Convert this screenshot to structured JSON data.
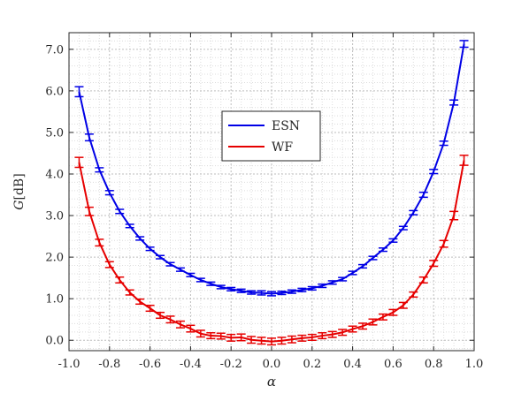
{
  "chart_data": {
    "type": "line",
    "xlabel": "α",
    "ylabel_italic": "G",
    "ylabel_rest": "[dB]",
    "xlim": [
      -1.0,
      1.0
    ],
    "ylim": [
      -0.25,
      7.4
    ],
    "x_ticks": [
      "-1.0",
      "-0.8",
      "-0.6",
      "-0.4",
      "-0.2",
      "0.0",
      "0.2",
      "0.4",
      "0.6",
      "0.8",
      "1.0"
    ],
    "y_ticks": [
      "0.0",
      "1.0",
      "2.0",
      "3.0",
      "4.0",
      "5.0",
      "6.0",
      "7.0"
    ],
    "x_tick_values": [
      -1.0,
      -0.8,
      -0.6,
      -0.4,
      -0.2,
      0.0,
      0.2,
      0.4,
      0.6,
      0.8,
      1.0
    ],
    "y_tick_values": [
      0,
      1,
      2,
      3,
      4,
      5,
      6,
      7
    ],
    "grid": "minor and major dotted",
    "legend_position": "center-upper",
    "x": [
      -0.95,
      -0.9,
      -0.85,
      -0.8,
      -0.75,
      -0.7,
      -0.65,
      -0.6,
      -0.55,
      -0.5,
      -0.45,
      -0.4,
      -0.35,
      -0.3,
      -0.25,
      -0.2,
      -0.15,
      -0.1,
      -0.05,
      0.0,
      0.05,
      0.1,
      0.15,
      0.2,
      0.25,
      0.3,
      0.35,
      0.4,
      0.45,
      0.5,
      0.55,
      0.6,
      0.65,
      0.7,
      0.75,
      0.8,
      0.85,
      0.9,
      0.95
    ],
    "series": [
      {
        "name": "ESN",
        "color": "#0000e6",
        "values": [
          5.98,
          4.88,
          4.1,
          3.55,
          3.1,
          2.75,
          2.45,
          2.2,
          2.0,
          1.83,
          1.7,
          1.57,
          1.45,
          1.36,
          1.28,
          1.23,
          1.19,
          1.15,
          1.14,
          1.12,
          1.14,
          1.17,
          1.21,
          1.25,
          1.31,
          1.39,
          1.47,
          1.62,
          1.78,
          1.98,
          2.18,
          2.4,
          2.7,
          3.07,
          3.5,
          4.06,
          4.74,
          5.72,
          7.13
        ],
        "errors": [
          0.12,
          0.08,
          0.05,
          0.05,
          0.05,
          0.04,
          0.04,
          0.04,
          0.04,
          0.04,
          0.04,
          0.04,
          0.04,
          0.04,
          0.04,
          0.04,
          0.04,
          0.04,
          0.05,
          0.05,
          0.04,
          0.04,
          0.04,
          0.04,
          0.04,
          0.04,
          0.04,
          0.04,
          0.04,
          0.04,
          0.04,
          0.04,
          0.04,
          0.05,
          0.06,
          0.05,
          0.05,
          0.06,
          0.08
        ]
      },
      {
        "name": "WF",
        "color": "#e60000",
        "values": [
          4.28,
          3.1,
          2.35,
          1.82,
          1.45,
          1.15,
          0.93,
          0.77,
          0.6,
          0.5,
          0.38,
          0.28,
          0.16,
          0.11,
          0.1,
          0.06,
          0.07,
          0.01,
          -0.01,
          -0.03,
          -0.01,
          0.02,
          0.05,
          0.07,
          0.11,
          0.14,
          0.19,
          0.27,
          0.34,
          0.44,
          0.56,
          0.67,
          0.84,
          1.1,
          1.45,
          1.85,
          2.32,
          3.0,
          4.33
        ]
      }
    ],
    "wf_errors": [
      0.12,
      0.1,
      0.08,
      0.07,
      0.07,
      0.06,
      0.06,
      0.07,
      0.07,
      0.08,
      0.08,
      0.08,
      0.08,
      0.07,
      0.07,
      0.08,
      0.08,
      0.08,
      0.08,
      0.08,
      0.08,
      0.08,
      0.07,
      0.07,
      0.07,
      0.07,
      0.07,
      0.07,
      0.07,
      0.07,
      0.07,
      0.07,
      0.07,
      0.06,
      0.07,
      0.07,
      0.08,
      0.1,
      0.12
    ]
  }
}
